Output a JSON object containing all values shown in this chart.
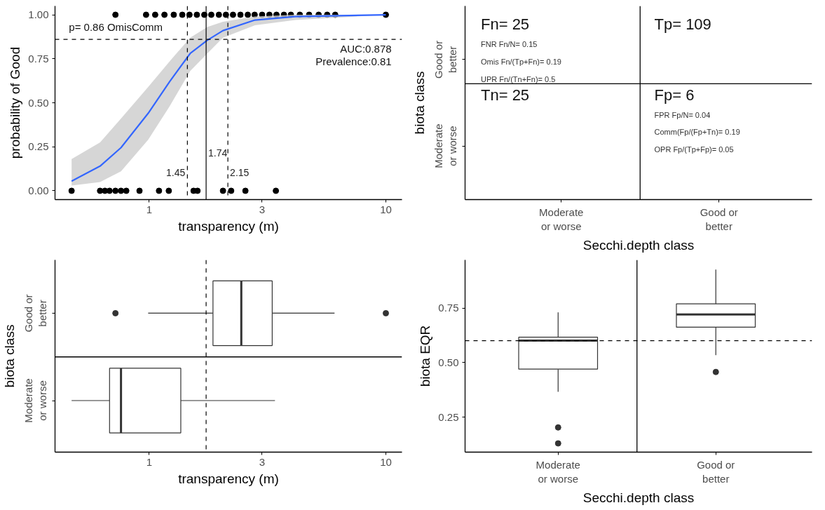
{
  "chart_data": [
    {
      "type": "scatter",
      "xlabel": "transparency (m)",
      "ylabel": "probability of Good",
      "log": "x",
      "grid": false,
      "xlim": [
        0.4,
        11.7
      ],
      "ylim": [
        -0.05,
        1.05
      ],
      "xticks": [
        1,
        3,
        10
      ],
      "yticks": [
        {
          "value": 0,
          "label": "0.00"
        },
        {
          "value": 0.25,
          "label": "0.25"
        },
        {
          "value": 0.5,
          "label": "0.50"
        },
        {
          "value": 0.75,
          "label": "0.75"
        },
        {
          "value": 1,
          "label": "1.00"
        }
      ],
      "series": [
        {
          "type": "scatter",
          "color": "#000000",
          "x": [
            0.47,
            0.62,
            0.65,
            0.68,
            0.72,
            0.76,
            0.8,
            0.91,
            1.1,
            1.21,
            1.54,
            1.6,
            2.05,
            2.22,
            2.55,
            3.43,
            0.72,
            0.97,
            1.06,
            1.16,
            1.27,
            1.38,
            1.48,
            1.59,
            1.71,
            1.83,
            1.97,
            2.11,
            2.26,
            2.43,
            2.61,
            2.79,
            3.0,
            3.22,
            3.45,
            3.71,
            3.97,
            4.33,
            4.74,
            5.2,
            5.65,
            6.11,
            10.0
          ],
          "values": [
            0,
            0,
            0,
            0,
            0,
            0,
            0,
            0,
            0,
            0,
            0,
            0,
            0,
            0,
            0,
            0,
            1,
            1,
            1,
            1,
            1,
            1,
            1,
            1,
            1,
            1,
            1,
            1,
            1,
            1,
            1,
            1,
            1,
            1,
            1,
            1,
            1,
            1,
            1,
            1,
            1,
            1,
            1
          ]
        },
        {
          "type": "line",
          "color": "#3366ff",
          "x": [
            0.47,
            0.62,
            0.76,
            0.99,
            1.22,
            1.49,
            1.76,
            2.05,
            2.8,
            4.14,
            10.0
          ],
          "values": [
            0.055,
            0.14,
            0.245,
            0.44,
            0.62,
            0.78,
            0.855,
            0.91,
            0.97,
            0.99,
            1.0
          ],
          "lower": [
            0.03,
            0.05,
            0.11,
            0.29,
            0.48,
            0.68,
            0.78,
            0.87,
            0.94,
            0.97,
            1.0
          ],
          "upper": [
            0.18,
            0.275,
            0.41,
            0.59,
            0.735,
            0.87,
            0.93,
            0.96,
            0.99,
            1.0,
            1.0
          ]
        }
      ],
      "ref_lines": [
        {
          "axis": "x",
          "value": 1.45,
          "label": "1.45",
          "line_style": "dashed"
        },
        {
          "axis": "x",
          "value": 2.15,
          "label": "2.15",
          "line_style": "dashed"
        },
        {
          "axis": "x",
          "value": 1.74,
          "label": "1.74",
          "line_style": "solid"
        },
        {
          "axis": "y",
          "value": 0.86,
          "line_style": "dashed"
        }
      ],
      "annotations": [
        "p= 0.86 OmisComm",
        "AUC:0.878",
        "Prevalence:0.81"
      ]
    },
    {
      "type": "other",
      "xlabel": "Secchi.depth class",
      "ylabel": "biota class",
      "categories": [
        "Moderate\nor worse",
        "Good or\nbetter"
      ],
      "y_categories": [
        "Good or\nbetter",
        "Moderate\nor worse"
      ],
      "annotations": [
        "Fn= 25",
        "FNR Fn/N= 0.15",
        "Omis Fn/(Tp+Fn)= 0.19",
        "UPR Fn/(Tn+Fn)= 0.5",
        "Tp= 109",
        "Tn= 25",
        "Fp= 6",
        "FPR Fp/N= 0.04",
        "Comm(Fp/(Fp+Tn)= 0.19",
        "OPR Fp/(Tp+Fp)= 0.05"
      ]
    },
    {
      "type": "box",
      "orientation": "horizontal",
      "xlabel": "transparency (m)",
      "ylabel": "biota class",
      "log": "x",
      "grid": false,
      "xlim": [
        0.4,
        11.7
      ],
      "xticks": [
        1,
        3,
        10
      ],
      "categories": [
        "Good or\nbetter",
        "Moderate\nor worse"
      ],
      "boxes": [
        {
          "low": 0.99,
          "q1": 1.86,
          "median": 2.45,
          "q3": 3.31,
          "high": 6.07,
          "outliers": [
            0.72,
            10.0
          ]
        },
        {
          "low": 0.47,
          "q1": 0.68,
          "median": 0.76,
          "q3": 1.36,
          "high": 3.4
        }
      ],
      "ref_lines": [
        {
          "axis": "x",
          "value": 1.74,
          "line_style": "dashed"
        }
      ]
    },
    {
      "type": "box",
      "xlabel": "Secchi.depth class",
      "ylabel": "biota EQR",
      "grid": false,
      "ylim": [
        0.09,
        0.97
      ],
      "yticks": [
        {
          "value": 0.25,
          "label": "0.25"
        },
        {
          "value": 0.5,
          "label": "0.50"
        },
        {
          "value": 0.75,
          "label": "0.75"
        }
      ],
      "categories": [
        "Moderate\nor worse",
        "Good or\nbetter"
      ],
      "boxes": [
        {
          "low": 0.366,
          "q1": 0.47,
          "median": 0.601,
          "q3": 0.616,
          "high": 0.73,
          "outliers": [
            0.203,
            0.13
          ]
        },
        {
          "low": 0.534,
          "q1": 0.662,
          "median": 0.72,
          "q3": 0.769,
          "high": 0.926,
          "outliers": [
            0.457
          ]
        }
      ],
      "ref_lines": [
        {
          "axis": "y",
          "value": 0.6,
          "line_style": "dashed"
        }
      ]
    }
  ]
}
